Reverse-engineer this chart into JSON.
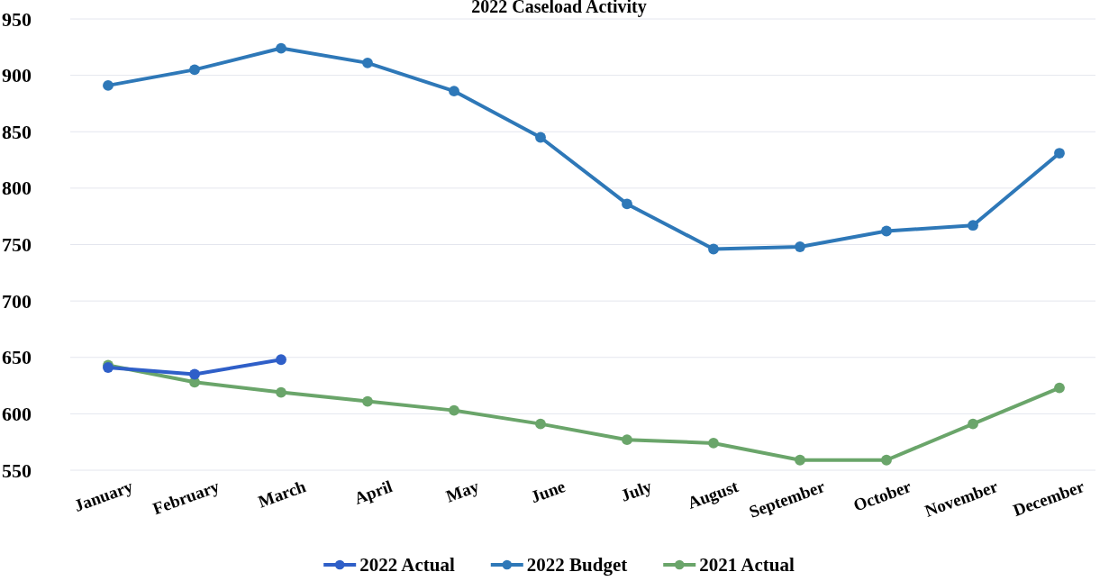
{
  "chart_data": {
    "type": "line",
    "title": "2022 Caseload Activity",
    "categories": [
      "January",
      "February",
      "March",
      "April",
      "May",
      "June",
      "July",
      "August",
      "September",
      "October",
      "November",
      "December"
    ],
    "series": [
      {
        "name": "2022 Actual",
        "color": "#2f5fc8",
        "values": [
          641,
          635,
          648,
          null,
          null,
          null,
          null,
          null,
          null,
          null,
          null,
          null
        ]
      },
      {
        "name": "2022 Budget",
        "color": "#2e78b8",
        "values": [
          891,
          905,
          924,
          911,
          886,
          845,
          786,
          746,
          748,
          762,
          767,
          831
        ]
      },
      {
        "name": "2021 Actual",
        "color": "#6aa56a",
        "values": [
          643,
          628,
          619,
          611,
          603,
          591,
          577,
          574,
          559,
          559,
          591,
          623
        ]
      }
    ],
    "ylim": [
      550,
      950
    ],
    "yticks": [
      550,
      600,
      650,
      700,
      750,
      800,
      850,
      900,
      950
    ],
    "grid": "y",
    "legend": "bottom",
    "marker": "circle",
    "line_style": "solid"
  }
}
